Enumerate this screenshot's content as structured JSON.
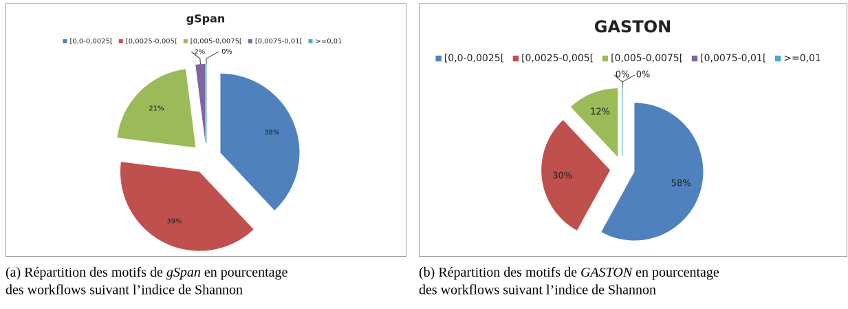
{
  "chart_data": [
    {
      "type": "pie",
      "title": "gSpan",
      "categories": [
        "[0,0-0,0025[",
        "[0,0025-0,005[",
        "[0,005-0,0075[",
        "[0,0075-0,01[",
        ">=0,01"
      ],
      "values": [
        38,
        39,
        21,
        2,
        0
      ],
      "value_labels": [
        "38%",
        "39%",
        "21%",
        "2%",
        "0%"
      ],
      "colors": [
        "#4f81bd",
        "#c0504d",
        "#9bbb59",
        "#8064a2",
        "#4bacc6"
      ],
      "legend": "top",
      "caption": [
        "(a) Répartition des motifs de ",
        "gSpan",
        " en pourcentage des workflows suivant l’indice de Shannon"
      ]
    },
    {
      "type": "pie",
      "title": "GASTON",
      "categories": [
        "[0,0-0,0025[",
        "[0,0025-0,005[",
        "[0,005-0,0075[",
        "[0,0075-0,01[",
        ">=0,01"
      ],
      "values": [
        58,
        30,
        12,
        0,
        0
      ],
      "value_labels": [
        "58%",
        "30%",
        "12%",
        "0%",
        "0%"
      ],
      "colors": [
        "#4f81bd",
        "#c0504d",
        "#9bbb59",
        "#8064a2",
        "#4bacc6"
      ],
      "legend": "top",
      "caption": [
        "(b) Répartition des motifs de ",
        "GASTON",
        "  en pourcentage des workflows suivant l’indice de Shannon"
      ]
    }
  ]
}
